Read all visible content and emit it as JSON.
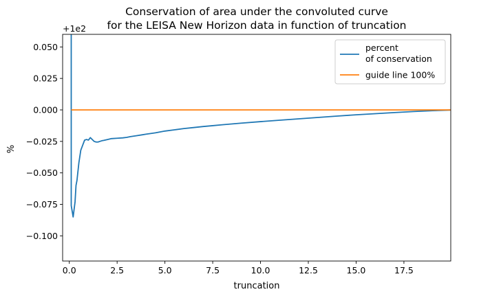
{
  "chart_data": {
    "type": "line",
    "title": [
      "Conservation of area under the convoluted curve",
      "for the LEISA New Horizon data in function of truncation"
    ],
    "xlabel": "truncation",
    "ylabel": "%",
    "offset_label": "+1e2",
    "xlim": [
      -0.35,
      19.95
    ],
    "ylim": [
      -0.12,
      0.06
    ],
    "x_ticks": [
      0.0,
      2.5,
      5.0,
      7.5,
      10.0,
      12.5,
      15.0,
      17.5
    ],
    "x_tick_labels": [
      "0.0",
      "2.5",
      "5.0",
      "7.5",
      "10.0",
      "12.5",
      "15.0",
      "17.5"
    ],
    "y_ticks": [
      0.05,
      0.025,
      0.0,
      -0.025,
      -0.05,
      -0.075,
      -0.1
    ],
    "y_tick_labels": [
      "0.050",
      "0.025",
      "0.000",
      "−0.025",
      "−0.050",
      "−0.075",
      "−0.100"
    ],
    "grid": false,
    "legend_position": "upper right",
    "series": [
      {
        "name": "percent\nof conservation",
        "color": "#1f77b4",
        "x": [
          0.1,
          0.1,
          0.1,
          0.2,
          0.3,
          0.35,
          0.4,
          0.5,
          0.6,
          0.7,
          0.8,
          0.9,
          1.0,
          1.1,
          1.2,
          1.3,
          1.4,
          1.5,
          1.6,
          1.7,
          1.8,
          2.0,
          2.2,
          2.5,
          2.8,
          3.0,
          3.2,
          3.5,
          3.8,
          4.0,
          4.5,
          5.0,
          5.5,
          6.0,
          6.5,
          7.0,
          7.5,
          8.0,
          9.0,
          10.0,
          11.0,
          12.0,
          13.0,
          14.0,
          15.0,
          16.0,
          17.0,
          18.0,
          19.0,
          19.95
        ],
        "y": [
          0.06,
          0.0,
          -0.076,
          -0.085,
          -0.073,
          -0.06,
          -0.056,
          -0.042,
          -0.032,
          -0.028,
          -0.024,
          -0.0235,
          -0.024,
          -0.022,
          -0.0235,
          -0.025,
          -0.0255,
          -0.0255,
          -0.025,
          -0.0245,
          -0.0242,
          -0.0235,
          -0.0228,
          -0.0225,
          -0.0222,
          -0.0218,
          -0.0212,
          -0.0205,
          -0.0198,
          -0.0193,
          -0.0182,
          -0.0168,
          -0.0158,
          -0.0148,
          -0.014,
          -0.0132,
          -0.0125,
          -0.0118,
          -0.0105,
          -0.0093,
          -0.0082,
          -0.0071,
          -0.006,
          -0.0049,
          -0.0039,
          -0.003,
          -0.0021,
          -0.0013,
          -0.0006,
          -0.0001
        ]
      },
      {
        "name": "guide line 100%",
        "color": "#ff7f0e",
        "x": [
          0.1,
          19.95
        ],
        "y": [
          0.0,
          0.0
        ]
      }
    ]
  }
}
